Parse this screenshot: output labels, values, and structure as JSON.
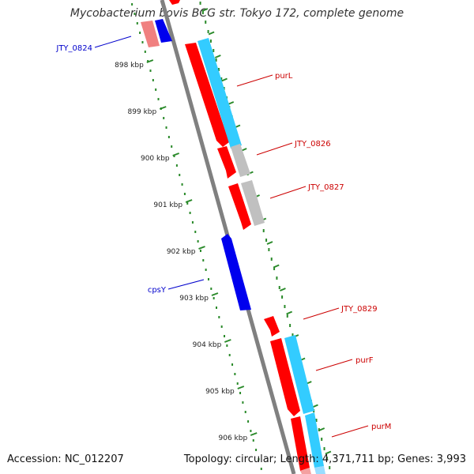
{
  "title": "Mycobacterium bovis BCG str. Tokyo 172, complete genome",
  "footer": {
    "accession": "Accession: NC_012207",
    "summary": "Topology: circular; Length: 4,371,711 bp; Genes: 3,993"
  },
  "colors": {
    "backbone": "#808080",
    "tick": "#2a8a2a",
    "forward_cds": "#ff0000",
    "reverse_cds": "#0000ee",
    "rna_cyan": "#33ccff",
    "gray_feature": "#c0c0c0",
    "label_forward": "#cc0000",
    "label_reverse": "#0000cc"
  },
  "scale_labels": [
    "898 kbp",
    "899 kbp",
    "900 kbp",
    "901 kbp",
    "902 kbp",
    "903 kbp",
    "904 kbp",
    "905 kbp",
    "906 kbp"
  ],
  "gene_labels": [
    {
      "text": "JTY_0824",
      "strand": "reverse"
    },
    {
      "text": "purL",
      "strand": "forward"
    },
    {
      "text": "JTY_0826",
      "strand": "forward"
    },
    {
      "text": "JTY_0827",
      "strand": "forward"
    },
    {
      "text": "cpsY",
      "strand": "reverse"
    },
    {
      "text": "JTY_0829",
      "strand": "forward"
    },
    {
      "text": "purF",
      "strand": "forward"
    },
    {
      "text": "purM",
      "strand": "forward"
    }
  ]
}
